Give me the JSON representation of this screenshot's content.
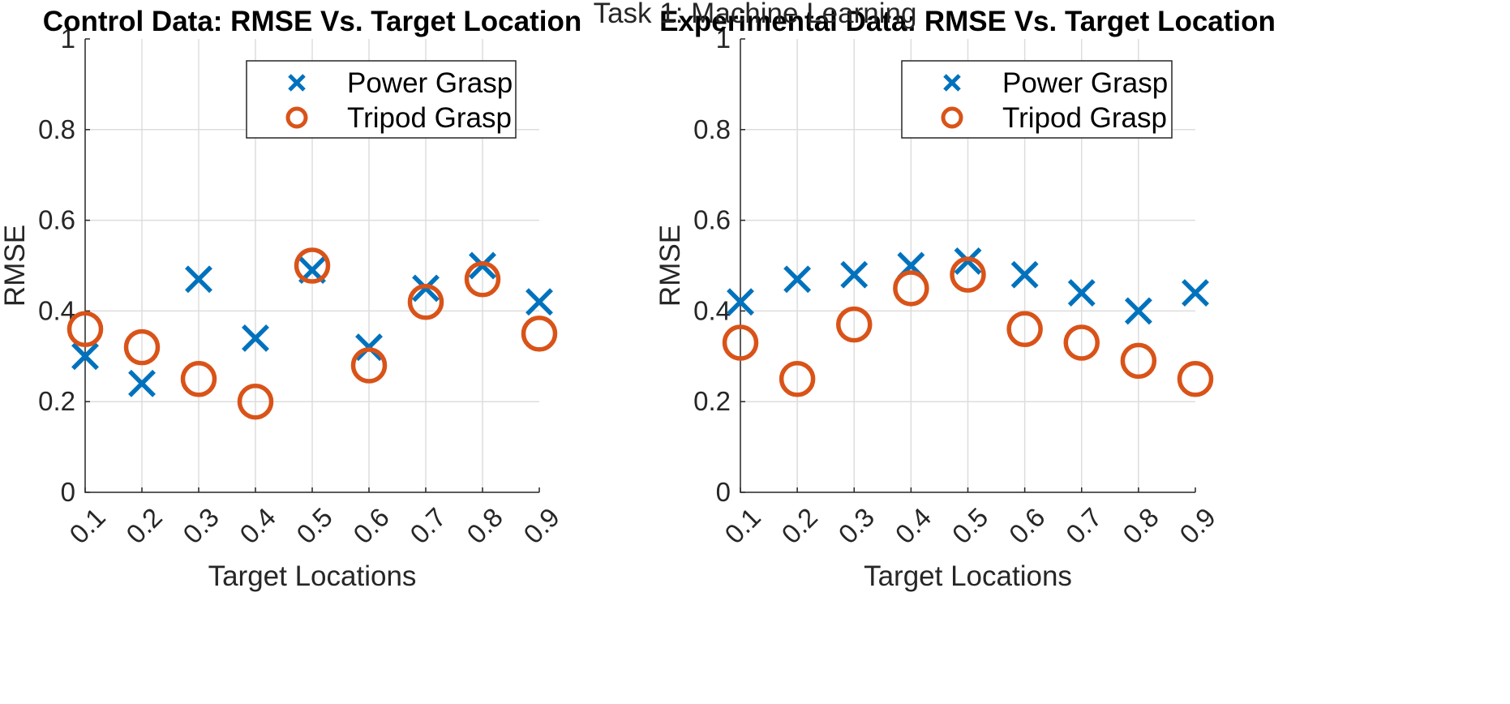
{
  "suptitle": "Task 1: Machine Learning",
  "colors": {
    "power": "#0072BD",
    "tripod": "#D95319"
  },
  "chart_data": [
    {
      "type": "scatter",
      "title": "Control Data: RMSE Vs. Target Location",
      "xlabel": "Target Locations",
      "ylabel": "RMSE",
      "ylim": [
        0,
        1
      ],
      "yticks": [
        "0",
        "0.2",
        "0.4",
        "0.6",
        "0.8",
        "1"
      ],
      "x": [
        "0.1",
        "0.2",
        "0.3",
        "0.4",
        "0.5",
        "0.6",
        "0.7",
        "0.8",
        "0.9"
      ],
      "grid": true,
      "legend_position": "top-right",
      "series": [
        {
          "name": "Power Grasp",
          "marker": "x",
          "values": [
            0.3,
            0.24,
            0.47,
            0.34,
            0.49,
            0.32,
            0.45,
            0.5,
            0.42
          ]
        },
        {
          "name": "Tripod Grasp",
          "marker": "o",
          "values": [
            0.36,
            0.32,
            0.25,
            0.2,
            0.5,
            0.28,
            0.42,
            0.47,
            0.35
          ]
        }
      ]
    },
    {
      "type": "scatter",
      "title": "Experimental Data: RMSE Vs. Target Location",
      "xlabel": "Target Locations",
      "ylabel": "RMSE",
      "ylim": [
        0,
        1
      ],
      "yticks": [
        "0",
        "0.2",
        "0.4",
        "0.6",
        "0.8",
        "1"
      ],
      "x": [
        "0.1",
        "0.2",
        "0.3",
        "0.4",
        "0.5",
        "0.6",
        "0.7",
        "0.8",
        "0.9"
      ],
      "grid": true,
      "legend_position": "top-right",
      "series": [
        {
          "name": "Power Grasp",
          "marker": "x",
          "values": [
            0.42,
            0.47,
            0.48,
            0.5,
            0.51,
            0.48,
            0.44,
            0.4,
            0.44
          ]
        },
        {
          "name": "Tripod Grasp",
          "marker": "o",
          "values": [
            0.33,
            0.25,
            0.37,
            0.45,
            0.48,
            0.36,
            0.33,
            0.29,
            0.25
          ]
        }
      ]
    }
  ]
}
